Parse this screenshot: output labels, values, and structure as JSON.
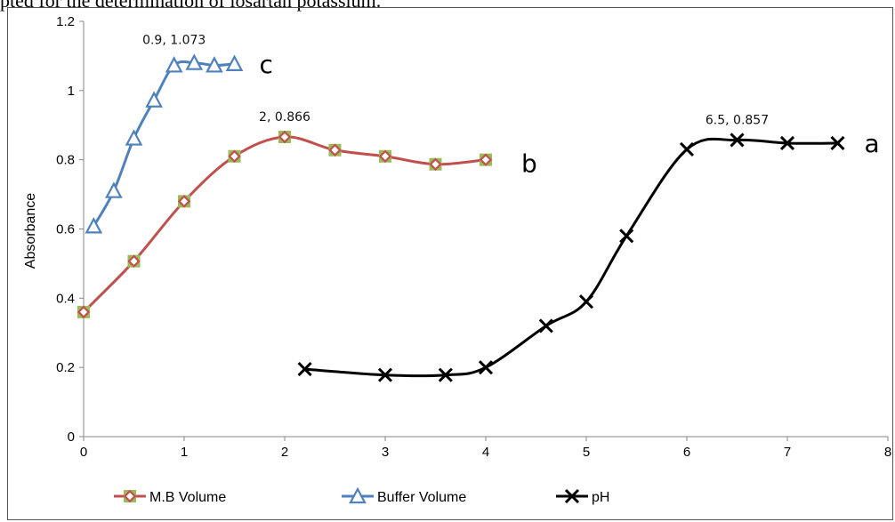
{
  "caption": "pted for the determination of losartan potassium.",
  "chart_data": {
    "type": "line",
    "xlabel": "",
    "ylabel": "Absorbance",
    "xlim": [
      0,
      8
    ],
    "ylim": [
      0,
      1.2
    ],
    "xticks": [
      "0",
      "1",
      "2",
      "3",
      "4",
      "5",
      "6",
      "7",
      "8"
    ],
    "yticks": [
      "0",
      "0.2",
      "0.4",
      "0.6",
      "0.8",
      "1",
      "1.2"
    ],
    "grid": false,
    "legend_position": "bottom",
    "series": [
      {
        "name": "M.B Volume",
        "curve_label": "b",
        "line_color": "#C0504D",
        "marker": "square",
        "marker_color": "#9BBB59",
        "x": [
          0,
          0.5,
          1,
          1.5,
          2,
          2.5,
          3,
          3.5,
          4
        ],
        "y": [
          0.36,
          0.507,
          0.68,
          0.81,
          0.866,
          0.828,
          0.81,
          0.787,
          0.8
        ],
        "point_labels": [
          {
            "x": 2,
            "y": 0.866,
            "text": "2, 0.866"
          }
        ]
      },
      {
        "name": "Buffer Volume",
        "curve_label": "c",
        "line_color": "#4F81BD",
        "marker": "triangle",
        "marker_color": "#4F81BD",
        "x": [
          0.1,
          0.3,
          0.5,
          0.7,
          0.9,
          1.1,
          1.3,
          1.5
        ],
        "y": [
          0.608,
          0.71,
          0.862,
          0.972,
          1.073,
          1.08,
          1.073,
          1.077
        ],
        "point_labels": [
          {
            "x": 0.9,
            "y": 1.073,
            "text": "0.9, 1.073"
          }
        ]
      },
      {
        "name": "pH",
        "curve_label": "a",
        "line_color": "#000000",
        "marker": "x",
        "marker_color": "#000000",
        "x": [
          2.2,
          3,
          3.6,
          4,
          4.6,
          5,
          5.4,
          6,
          6.5,
          7,
          7.5
        ],
        "y": [
          0.195,
          0.178,
          0.178,
          0.2,
          0.32,
          0.39,
          0.58,
          0.83,
          0.857,
          0.848,
          0.848
        ],
        "point_labels": [
          {
            "x": 6.5,
            "y": 0.857,
            "text": "6.5, 0.857"
          }
        ]
      }
    ]
  }
}
